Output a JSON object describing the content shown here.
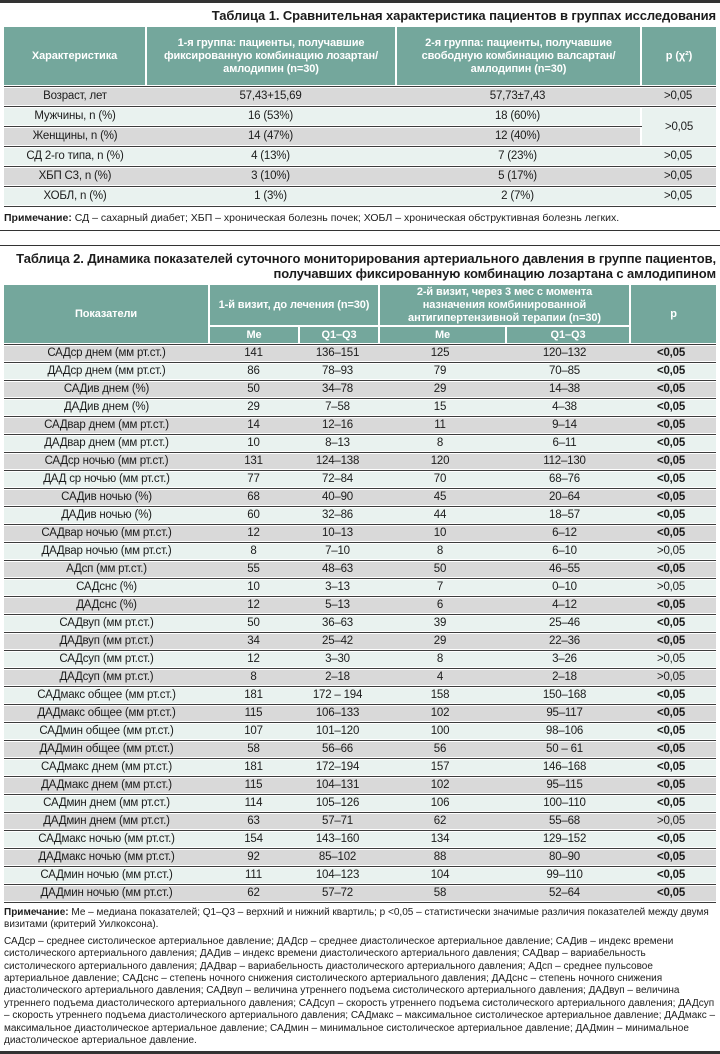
{
  "colors": {
    "teal": "#74a79c",
    "row_gray": "#d9d9d9",
    "row_pale": "#e9f2ef",
    "rule": "#333333",
    "sep": "#3d3d3d",
    "text": "#1c1c1c",
    "header_text": "#ffffff"
  },
  "table1": {
    "title": "Таблица 1. Сравнительная характеристика пациентов в группах исследования",
    "columns": [
      "Характеристика",
      "1-я группа: пациенты, получавшие фиксированную комбинацию лозартан/амлодипин (n=30)",
      "2-я группа: пациенты, получавшие свободную комбинацию валсартан/амлодипин (n=30)",
      "р (χ²)"
    ],
    "rows": [
      {
        "label": "Возраст, лет",
        "g1": "57,43+15,69",
        "g2": "57,73±7,43",
        "p": ">0,05",
        "p_span": 1
      },
      {
        "label": "Мужчины, n (%)",
        "g1": "16 (53%)",
        "g2": "18 (60%)",
        "p": ">0,05",
        "p_span": 2
      },
      {
        "label": "Женщины, n (%)",
        "g1": "14 (47%)",
        "g2": "12 (40%)",
        "p": "",
        "p_span": 0
      },
      {
        "label": "СД 2-го типа, n (%)",
        "g1": "4 (13%)",
        "g2": "7 (23%)",
        "p": ">0,05",
        "p_span": 1
      },
      {
        "label": "ХБП С3, n (%)",
        "g1": "3 (10%)",
        "g2": "5 (17%)",
        "p": ">0,05",
        "p_span": 1
      },
      {
        "label": "ХОБЛ, n (%)",
        "g1": "1 (3%)",
        "g2": "2 (7%)",
        "p": ">0,05",
        "p_span": 1
      }
    ],
    "note_label": "Примечание:",
    "note_text": "СД – сахарный диабет; ХБП – хроническая болезнь почек; ХОБЛ – хроническая обструктивная болезнь легких."
  },
  "table2": {
    "title": "Таблица 2. Динамика показателей суточного мониторирования артериального давления в группе пациентов, получавших фиксированную комбинацию лозартана с амлодипином",
    "col_indicators": "Показатели",
    "group1": "1-й визит, до лечения (n=30)",
    "group2": "2-й визит, через 3 мес с момента назначения комбинированной антигипертензивной терапии (n=30)",
    "col_p": "р",
    "sub": {
      "me1": "Ме",
      "q1": "Q1–Q3",
      "me2": "Ме",
      "q2": "Q1–Q3"
    },
    "rows": [
      {
        "label": "САДср днем (мм рт.ст.)",
        "v1me": "141",
        "v1q": "136–151",
        "v2me": "125",
        "v2q": "120–132",
        "p": "<0,05"
      },
      {
        "label": "ДАДср днем (мм рт.ст.)",
        "v1me": "86",
        "v1q": "78–93",
        "v2me": "79",
        "v2q": "70–85",
        "p": "<0,05"
      },
      {
        "label": "САДив днем (%)",
        "v1me": "50",
        "v1q": "34–78",
        "v2me": "29",
        "v2q": "14–38",
        "p": "<0,05"
      },
      {
        "label": "ДАДив днем (%)",
        "v1me": "29",
        "v1q": "7–58",
        "v2me": "15",
        "v2q": "4–38",
        "p": "<0,05"
      },
      {
        "label": "САДвар днем (мм рт.ст.)",
        "v1me": "14",
        "v1q": "12–16",
        "v2me": "11",
        "v2q": "9–14",
        "p": "<0,05"
      },
      {
        "label": "ДАДвар днем (мм рт.ст.)",
        "v1me": "10",
        "v1q": "8–13",
        "v2me": "8",
        "v2q": "6–11",
        "p": "<0,05"
      },
      {
        "label": "САДср ночью (мм рт.ст.)",
        "v1me": "131",
        "v1q": "124–138",
        "v2me": "120",
        "v2q": "112–130",
        "p": "<0,05"
      },
      {
        "label": "ДАД ср ночью (мм рт.ст.)",
        "v1me": "77",
        "v1q": "72–84",
        "v2me": "70",
        "v2q": "68–76",
        "p": "<0,05"
      },
      {
        "label": "САДив ночью (%)",
        "v1me": "68",
        "v1q": "40–90",
        "v2me": "45",
        "v2q": "20–64",
        "p": "<0,05"
      },
      {
        "label": "ДАДив ночью (%)",
        "v1me": "60",
        "v1q": "32–86",
        "v2me": "44",
        "v2q": "18–57",
        "p": "<0,05"
      },
      {
        "label": "САДвар ночью (мм рт.ст.)",
        "v1me": "12",
        "v1q": "10–13",
        "v2me": "10",
        "v2q": "6–12",
        "p": "<0,05"
      },
      {
        "label": "ДАДвар ночью (мм рт.ст.)",
        "v1me": "8",
        "v1q": "7–10",
        "v2me": "8",
        "v2q": "6–10",
        "p": ">0,05"
      },
      {
        "label": "АДсп (мм рт.ст.)",
        "v1me": "55",
        "v1q": "48–63",
        "v2me": "50",
        "v2q": "46–55",
        "p": "<0,05"
      },
      {
        "label": "САДснс (%)",
        "v1me": "10",
        "v1q": "3–13",
        "v2me": "7",
        "v2q": "0–10",
        "p": ">0,05"
      },
      {
        "label": "ДАДснс (%)",
        "v1me": "12",
        "v1q": "5–13",
        "v2me": "6",
        "v2q": "4–12",
        "p": "<0,05"
      },
      {
        "label": "САДвуп (мм рт.ст.)",
        "v1me": "50",
        "v1q": "36–63",
        "v2me": "39",
        "v2q": "25–46",
        "p": "<0,05"
      },
      {
        "label": "ДАДвуп (мм рт.ст.)",
        "v1me": "34",
        "v1q": "25–42",
        "v2me": "29",
        "v2q": "22–36",
        "p": "<0,05"
      },
      {
        "label": "САДсуп (мм рт.ст.)",
        "v1me": "12",
        "v1q": "3–30",
        "v2me": "8",
        "v2q": "3–26",
        "p": ">0,05"
      },
      {
        "label": "ДАДсуп (мм рт.ст.)",
        "v1me": "8",
        "v1q": "2–18",
        "v2me": "4",
        "v2q": "2–18",
        "p": ">0,05"
      },
      {
        "label": "САДмакс общее (мм рт.ст.)",
        "v1me": "181",
        "v1q": "172 – 194",
        "v2me": "158",
        "v2q": "150–168",
        "p": "<0,05"
      },
      {
        "label": "ДАДмакс общее (мм рт.ст.)",
        "v1me": "115",
        "v1q": "106–133",
        "v2me": "102",
        "v2q": "95–117",
        "p": "<0,05"
      },
      {
        "label": "САДмин общее (мм рт.ст.)",
        "v1me": "107",
        "v1q": "101–120",
        "v2me": "100",
        "v2q": "98–106",
        "p": "<0,05"
      },
      {
        "label": "ДАДмин общее (мм рт.ст.)",
        "v1me": "58",
        "v1q": "56–66",
        "v2me": "56",
        "v2q": "50 – 61",
        "p": "<0,05"
      },
      {
        "label": "САДмакс днем (мм рт.ст.)",
        "v1me": "181",
        "v1q": "172–194",
        "v2me": "157",
        "v2q": "146–168",
        "p": "<0,05"
      },
      {
        "label": "ДАДмакс днем (мм рт.ст.)",
        "v1me": "115",
        "v1q": "104–131",
        "v2me": "102",
        "v2q": "95–115",
        "p": "<0,05"
      },
      {
        "label": "САДмин днем (мм рт.ст.)",
        "v1me": "114",
        "v1q": "105–126",
        "v2me": "106",
        "v2q": "100–110",
        "p": "<0,05"
      },
      {
        "label": "ДАДмин днем (мм рт.ст.)",
        "v1me": "63",
        "v1q": "57–71",
        "v2me": "62",
        "v2q": "55–68",
        "p": ">0,05"
      },
      {
        "label": "САДмакс ночью (мм рт.ст.)",
        "v1me": "154",
        "v1q": "143–160",
        "v2me": "134",
        "v2q": "129–152",
        "p": "<0,05"
      },
      {
        "label": "ДАДмакс ночью (мм рт.ст.)",
        "v1me": "92",
        "v1q": "85–102",
        "v2me": "88",
        "v2q": "80–90",
        "p": "<0,05"
      },
      {
        "label": "САДмин ночью (мм рт.ст.)",
        "v1me": "111",
        "v1q": "104–123",
        "v2me": "104",
        "v2q": "99–110",
        "p": "<0,05"
      },
      {
        "label": "ДАДмин ночью (мм рт.ст.)",
        "v1me": "62",
        "v1q": "57–72",
        "v2me": "58",
        "v2q": "52–64",
        "p": "<0,05"
      }
    ],
    "note_label": "Примечание:",
    "note_text_1": "Ме – медиана показателей; Q1–Q3 – верхний и нижний квартиль; р <0,05 – статистически значимые различия показателей между двумя визитами (критерий Уилкоксона).",
    "note_text_2": "САДср – среднее систолическое артериальное давление; ДАДср – среднее диастолическое артериальное давление; САДив – индекс времени систолического артериального давления; ДАДив – индекс времени диастолического артериального давления; САДвар – вариабельность систолического артериального давления; ДАДвар – вариабельность диастолического артериального давления; АДсп – среднее пульсовое артериальное давление; САДснс – степень ночного снижения систолического артериального давления; ДАДснс – степень ночного снижения диастолического артериального давления; САДвуп – величина утреннего подъема систолического артериального давления; ДАДвуп – величина утреннего подъема диастолического артериального давления; САДсуп – скорость утреннего подъема систолического артериального давления; ДАДсуп – скорость утреннего подъема диастолического артериального давления; САДмакс – максимальное систолическое артериальное давление; ДАДмакс – максимальное диастолическое артериальное давление; САДмин – минимальное систолическое артериальное давление; ДАДмин – минимальное диастолическое артериальное давление."
  }
}
